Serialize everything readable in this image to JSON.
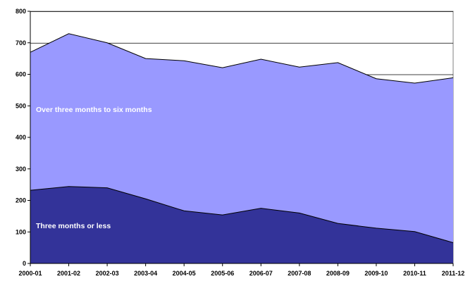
{
  "chart_data": {
    "type": "area",
    "stacked": true,
    "categories": [
      "2000-01",
      "2001-02",
      "2002-03",
      "2003-04",
      "2004-05",
      "2005-06",
      "2006-07",
      "2007-08",
      "2008-09",
      "2009-10",
      "2010-11",
      "2011-12"
    ],
    "series": [
      {
        "name": "Three months or less",
        "values": [
          232,
          244,
          240,
          205,
          167,
          154,
          175,
          160,
          127,
          112,
          101,
          66
        ],
        "color": "#333399"
      },
      {
        "name": "Over three months to six months",
        "values": [
          438,
          485,
          460,
          445,
          476,
          467,
          473,
          463,
          510,
          474,
          471,
          523
        ],
        "color": "#9999FF"
      }
    ],
    "ylim": [
      0,
      800
    ],
    "yticks": [
      0,
      100,
      200,
      300,
      400,
      500,
      600,
      700,
      800
    ],
    "grid": true,
    "legend": "inline"
  }
}
